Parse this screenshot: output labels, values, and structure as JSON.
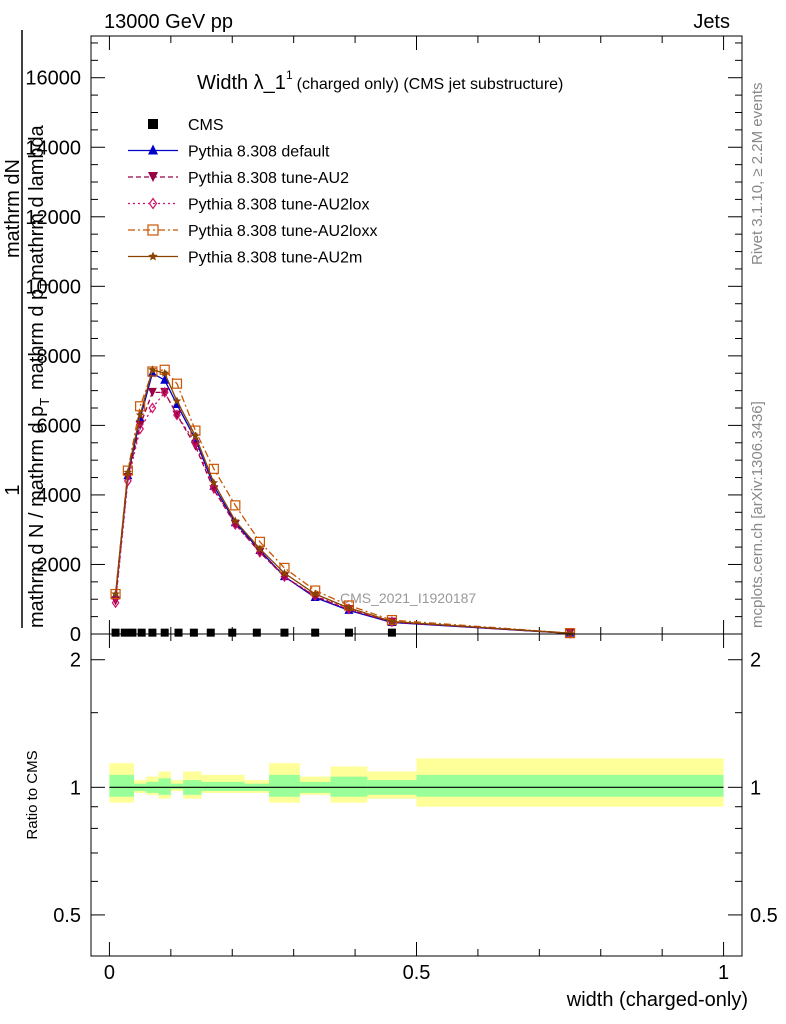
{
  "header": {
    "left": "13000 GeV pp",
    "right": "Jets"
  },
  "side_labels": {
    "rivet": "Rivet 3.1.10, ≥ 2.2M events",
    "mcplots": "mcplots.cern.ch [arXiv:1306.3436]"
  },
  "chart_data": [
    {
      "type": "line",
      "title_main": "Width λ_1",
      "title_sup": "1",
      "title_rest": "(charged only) (CMS jet substructure)",
      "ylabel_num_1": "mathrm d",
      "ylabel_num_2": "N",
      "ylabel_den_1": "mathrm d p",
      "ylabel_den_sub": "T",
      "ylabel_den_2": "mathrm d lambda",
      "ylabel_prefix": "1",
      "ylabel_prefix_den": "mathrm d N / mathrm d p",
      "ylabel_prefix_sub": "T",
      "watermark": "CMS_2021_I1920187",
      "xlim": [
        -0.03,
        1.03
      ],
      "ylim": [
        0,
        17200
      ],
      "yticks": [
        0,
        2000,
        4000,
        6000,
        8000,
        10000,
        12000,
        14000,
        16000
      ],
      "ytick_labels": [
        "0",
        "2000",
        "4000",
        "6000",
        "8000",
        "10000",
        "12000",
        "14000",
        "16000"
      ],
      "x_bins": [
        0.0,
        0.02,
        0.03,
        0.045,
        0.06,
        0.08,
        0.1,
        0.125,
        0.15,
        0.18,
        0.22,
        0.26,
        0.31,
        0.36,
        0.42,
        0.5,
        1.0
      ],
      "legend": [
        {
          "label": "CMS",
          "marker": "square",
          "color": "#000000",
          "dash": "none"
        },
        {
          "label": "Pythia 8.308 default",
          "marker": "triangle-up",
          "color": "#0000cc",
          "dash": "solid"
        },
        {
          "label": "Pythia 8.308 tune-AU2",
          "marker": "triangle-down",
          "color": "#990044",
          "dash": "dash"
        },
        {
          "label": "Pythia 8.308 tune-AU2lox",
          "marker": "diamond-open",
          "color": "#cc1166",
          "dash": "dot"
        },
        {
          "label": "Pythia 8.308 tune-AU2loxx",
          "marker": "square-open",
          "color": "#cc5500",
          "dash": "dashdot"
        },
        {
          "label": "Pythia 8.308 tune-AU2m",
          "marker": "star",
          "color": "#884400",
          "dash": "solid"
        }
      ],
      "cms_points": {
        "x": [
          0.01,
          0.025,
          0.0375,
          0.0525,
          0.07,
          0.09,
          0.1125,
          0.1375,
          0.165,
          0.2,
          0.24,
          0.285,
          0.335,
          0.39,
          0.46
        ],
        "y": [
          10,
          10,
          10,
          10,
          10,
          10,
          10,
          10,
          10,
          10,
          10,
          10,
          10,
          10,
          10
        ]
      },
      "series": [
        {
          "name": "Pythia 8.308 default",
          "x": [
            0.01,
            0.03,
            0.05,
            0.07,
            0.09,
            0.11,
            0.14,
            0.17,
            0.205,
            0.245,
            0.285,
            0.335,
            0.39,
            0.46,
            0.75
          ],
          "y": [
            1100,
            4550,
            6200,
            7500,
            7300,
            6600,
            5600,
            4250,
            3200,
            2400,
            1650,
            1050,
            680,
            330,
            20
          ]
        },
        {
          "name": "Pythia 8.308 tune-AU2",
          "x": [
            0.01,
            0.03,
            0.05,
            0.07,
            0.09,
            0.11,
            0.14,
            0.17,
            0.205,
            0.245,
            0.285,
            0.335,
            0.39,
            0.46,
            0.75
          ],
          "y": [
            950,
            4500,
            6000,
            6950,
            6950,
            6300,
            5400,
            4150,
            3150,
            2350,
            1650,
            1080,
            700,
            340,
            20
          ]
        },
        {
          "name": "Pythia 8.308 tune-AU2lox",
          "x": [
            0.01,
            0.03,
            0.05,
            0.07,
            0.09,
            0.11,
            0.14,
            0.17,
            0.205,
            0.245,
            0.285,
            0.335,
            0.39,
            0.46,
            0.75
          ],
          "y": [
            900,
            4400,
            5900,
            6500,
            6950,
            6300,
            5500,
            4200,
            3150,
            2350,
            1650,
            1100,
            720,
            350,
            20
          ]
        },
        {
          "name": "Pythia 8.308 tune-AU2loxx",
          "x": [
            0.01,
            0.03,
            0.05,
            0.07,
            0.09,
            0.11,
            0.14,
            0.17,
            0.205,
            0.245,
            0.285,
            0.335,
            0.39,
            0.46,
            0.75
          ],
          "y": [
            1150,
            4700,
            6550,
            7550,
            7600,
            7200,
            5850,
            4750,
            3700,
            2650,
            1900,
            1250,
            820,
            400,
            25
          ]
        },
        {
          "name": "Pythia 8.308 tune-AU2m",
          "x": [
            0.01,
            0.03,
            0.05,
            0.07,
            0.09,
            0.11,
            0.14,
            0.17,
            0.205,
            0.245,
            0.285,
            0.335,
            0.39,
            0.46,
            0.75
          ],
          "y": [
            1150,
            4650,
            6300,
            7600,
            7500,
            6700,
            5700,
            4350,
            3250,
            2450,
            1750,
            1150,
            750,
            360,
            20
          ]
        }
      ]
    },
    {
      "type": "area",
      "ylabel": "Ratio to CMS",
      "xlabel": "width (charged-only)",
      "xlim": [
        -0.03,
        1.03
      ],
      "ylim": [
        0.4,
        2.3
      ],
      "xticks": [
        0,
        0.5,
        1
      ],
      "xtick_labels": [
        "0",
        "0.5",
        "1"
      ],
      "yticks": [
        0.5,
        1,
        2
      ],
      "ytick_labels": [
        "0.5",
        "1",
        "2"
      ],
      "bands": {
        "x_edges": [
          0.0,
          0.04,
          0.06,
          0.08,
          0.1,
          0.12,
          0.15,
          0.22,
          0.26,
          0.31,
          0.36,
          0.42,
          0.5,
          1.0
        ],
        "yellow_lo": [
          0.92,
          0.97,
          0.96,
          0.94,
          0.98,
          0.94,
          0.97,
          0.97,
          0.92,
          0.96,
          0.92,
          0.94,
          0.9
        ],
        "yellow_hi": [
          1.14,
          1.04,
          1.06,
          1.09,
          1.04,
          1.09,
          1.07,
          1.04,
          1.14,
          1.06,
          1.12,
          1.09,
          1.17
        ],
        "green_lo": [
          0.95,
          0.98,
          0.97,
          0.96,
          0.99,
          0.96,
          0.98,
          0.98,
          0.95,
          0.97,
          0.95,
          0.96,
          0.95
        ],
        "green_hi": [
          1.07,
          1.02,
          1.03,
          1.05,
          1.02,
          1.04,
          1.03,
          1.02,
          1.07,
          1.03,
          1.06,
          1.04,
          1.07
        ]
      },
      "band_colors": {
        "yellow": "#ffff99",
        "green": "#99ff99"
      }
    }
  ]
}
